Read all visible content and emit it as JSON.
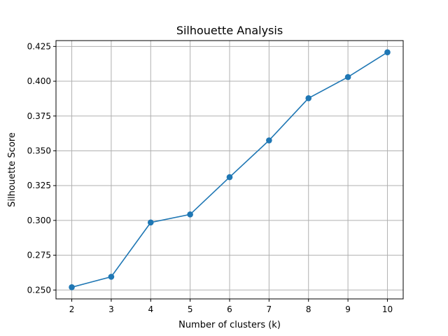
{
  "chart_data": {
    "type": "line",
    "title": "Silhouette Analysis",
    "xlabel": "Number of clusters (k)",
    "ylabel": "Silhouette Score",
    "x": [
      2,
      3,
      4,
      5,
      6,
      7,
      8,
      9,
      10
    ],
    "series": [
      {
        "values": [
          0.252,
          0.2595,
          0.2985,
          0.3043,
          0.3311,
          0.3575,
          0.3878,
          0.403,
          0.4208
        ],
        "color": "#1f77b4",
        "marker": "circle"
      }
    ],
    "xticks": [
      "2",
      "3",
      "4",
      "5",
      "6",
      "7",
      "8",
      "9",
      "10"
    ],
    "yticks": [
      "0.250",
      "0.275",
      "0.300",
      "0.325",
      "0.350",
      "0.375",
      "0.400",
      "0.425"
    ],
    "xlim": [
      1.6,
      10.4
    ],
    "ylim": [
      0.2436,
      0.4292
    ],
    "grid": true
  }
}
